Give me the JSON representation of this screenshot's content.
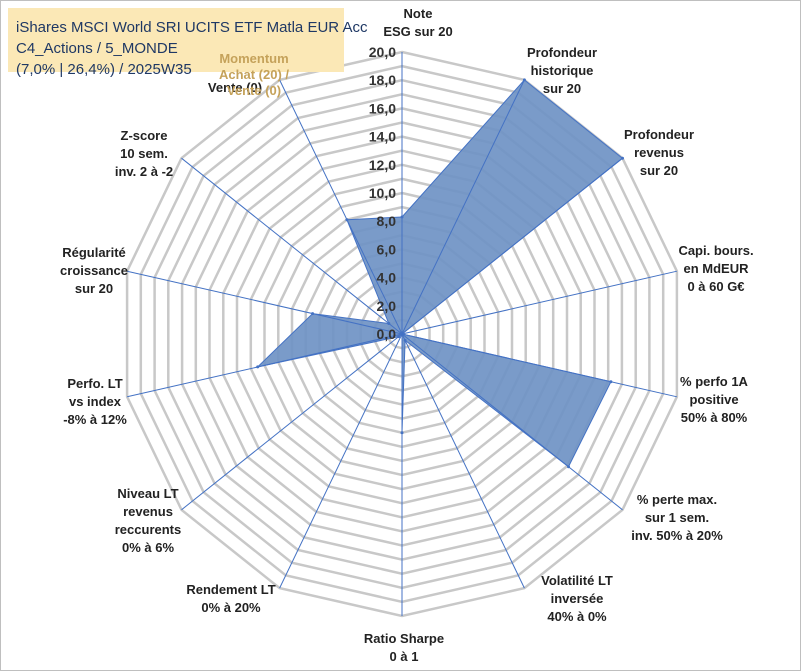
{
  "title": {
    "line1": "iShares MSCI World SRI UCITS ETF Matla EUR Acc",
    "line2": "C4_Actions / 5_MONDE",
    "line3": "(7,0% | 26,4%) / 2025W35",
    "momentum": "Momentum Achat (20) / Vente (0)"
  },
  "colors": {
    "fill": "#6f92c4",
    "stroke": "#4472c4",
    "grid": "#c8c8c8",
    "spoke": "#4472c4",
    "title_bg": "#fbe8b6",
    "title_text": "#1f3864",
    "momentum_text": "#c5a25a"
  },
  "chart_data": {
    "type": "radar",
    "rmin": 0,
    "rmax": 20,
    "ticks": [
      "0,0",
      "2,0",
      "4,0",
      "6,0",
      "8,0",
      "10,0",
      "12,0",
      "14,0",
      "16,0",
      "18,0",
      "20,0"
    ],
    "axes": [
      [
        "Note",
        "ESG sur 20"
      ],
      [
        "Profondeur",
        "historique",
        "sur 20"
      ],
      [
        "Profondeur",
        "revenus",
        "sur 20"
      ],
      [
        "Capi. bours.",
        "en MdEUR",
        "0 à 60 G€"
      ],
      [
        "% perfo 1A",
        "positive",
        "50% à 80%"
      ],
      [
        "% perte max.",
        "sur 1 sem.",
        "inv. 50% à 20%"
      ],
      [
        "Volatilité LT",
        "inversée",
        "40% à 0%"
      ],
      [
        "Ratio Sharpe",
        "0 à 1"
      ],
      [
        "Rendement LT",
        "0% à 20%"
      ],
      [
        "Niveau LT",
        "revenus",
        "reccurents",
        "0% à 6%"
      ],
      [
        "Perfo. LT",
        "vs index",
        "-8% à 12%"
      ],
      [
        "Régularité",
        "croissance",
        "sur 20"
      ],
      [
        "Z-score",
        "10 sem.",
        "inv. 2 à -2"
      ],
      [
        "Momentum",
        "Achat (20) /",
        "Vente (0)"
      ]
    ],
    "values": [
      8.3,
      20.0,
      20.0,
      0.0,
      15.2,
      15.1,
      0.5,
      7.0,
      0.0,
      0.3,
      10.5,
      6.5,
      1.2,
      9.0
    ]
  }
}
